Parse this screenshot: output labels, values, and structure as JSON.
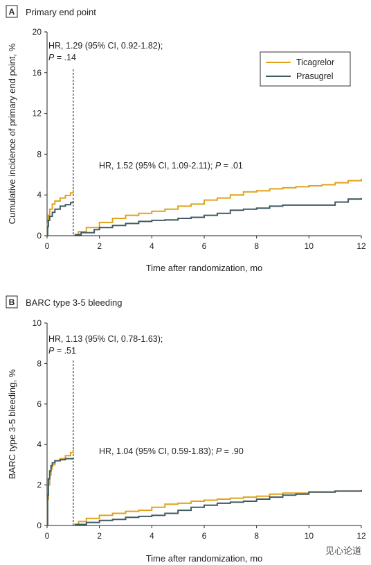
{
  "watermark": "见心论道",
  "colors": {
    "ticagrelor": "#E0A21B",
    "prasugrel": "#3F5A62",
    "axis": "#222222",
    "legend_border": "#333333"
  },
  "chart_data": [
    {
      "type": "line",
      "panel_letter": "A",
      "title": "Primary end point",
      "xlabel": "Time after randomization, mo",
      "ylabel": "Cumulative incidence of primary end point, %",
      "xlim": [
        0,
        12
      ],
      "ylim": [
        0,
        20
      ],
      "xticks": [
        0,
        2,
        4,
        6,
        8,
        10,
        12
      ],
      "yticks": [
        0,
        4,
        8,
        12,
        16,
        20
      ],
      "landmark_x": 1,
      "legend": {
        "placement": "top-right",
        "entries": [
          "Ticagrelor",
          "Prasugrel"
        ]
      },
      "annotations": [
        {
          "lines": [
            [
              {
                "t": "HR, 1.29 (95% CI, 0.92-1.82);",
                "i": false
              }
            ],
            [
              {
                "t": "P",
                "i": true
              },
              {
                "t": " = .14",
                "i": false
              }
            ]
          ],
          "pos": "top-left"
        },
        {
          "lines": [
            [
              {
                "t": "HR, 1.52 (95% CI, 1.09-2.11); ",
                "i": false
              },
              {
                "t": "P",
                "i": true
              },
              {
                "t": " = .01",
                "i": false
              }
            ]
          ],
          "pos": "mid"
        }
      ],
      "series": [
        {
          "name": "Ticagrelor",
          "segments": [
            [
              [
                0,
                0
              ],
              [
                0.02,
                1.2
              ],
              [
                0.05,
                2.0
              ],
              [
                0.1,
                2.6
              ],
              [
                0.2,
                3.1
              ],
              [
                0.3,
                3.4
              ],
              [
                0.5,
                3.7
              ],
              [
                0.7,
                3.95
              ],
              [
                0.9,
                4.2
              ],
              [
                1.0,
                4.5
              ]
            ],
            [
              [
                1.05,
                0.1
              ],
              [
                1.2,
                0.4
              ],
              [
                1.5,
                0.8
              ],
              [
                2.0,
                1.3
              ],
              [
                2.5,
                1.7
              ],
              [
                3.0,
                2.0
              ],
              [
                3.5,
                2.2
              ],
              [
                4.0,
                2.4
              ],
              [
                4.5,
                2.6
              ],
              [
                5.0,
                2.9
              ],
              [
                5.5,
                3.1
              ],
              [
                6.0,
                3.5
              ],
              [
                6.5,
                3.7
              ],
              [
                7.0,
                4.0
              ],
              [
                7.5,
                4.3
              ],
              [
                8.0,
                4.4
              ],
              [
                8.5,
                4.6
              ],
              [
                9.0,
                4.7
              ],
              [
                9.5,
                4.8
              ],
              [
                10.0,
                4.9
              ],
              [
                10.5,
                5.0
              ],
              [
                11.0,
                5.2
              ],
              [
                11.5,
                5.4
              ],
              [
                12.0,
                5.6
              ]
            ]
          ]
        },
        {
          "name": "Prasugrel",
          "segments": [
            [
              [
                0,
                0
              ],
              [
                0.02,
                0.9
              ],
              [
                0.05,
                1.5
              ],
              [
                0.1,
                1.9
              ],
              [
                0.2,
                2.3
              ],
              [
                0.3,
                2.6
              ],
              [
                0.5,
                2.9
              ],
              [
                0.7,
                3.05
              ],
              [
                0.9,
                3.25
              ],
              [
                1.0,
                3.4
              ]
            ],
            [
              [
                1.05,
                0.1
              ],
              [
                1.3,
                0.3
              ],
              [
                1.8,
                0.6
              ],
              [
                2.0,
                0.8
              ],
              [
                2.5,
                1.0
              ],
              [
                3.0,
                1.2
              ],
              [
                3.5,
                1.4
              ],
              [
                4.0,
                1.5
              ],
              [
                4.5,
                1.55
              ],
              [
                5.0,
                1.7
              ],
              [
                5.5,
                1.8
              ],
              [
                6.0,
                2.0
              ],
              [
                6.5,
                2.2
              ],
              [
                7.0,
                2.5
              ],
              [
                7.5,
                2.6
              ],
              [
                8.0,
                2.7
              ],
              [
                8.5,
                2.9
              ],
              [
                9.0,
                3.0
              ],
              [
                9.5,
                3.0
              ],
              [
                10.0,
                3.0
              ],
              [
                10.5,
                3.0
              ],
              [
                11.0,
                3.3
              ],
              [
                11.5,
                3.6
              ],
              [
                12.0,
                3.7
              ]
            ]
          ]
        }
      ]
    },
    {
      "type": "line",
      "panel_letter": "B",
      "title": "BARC type 3-5 bleeding",
      "xlabel": "Time after randomization, mo",
      "ylabel": "BARC type 3-5 bleeding, %",
      "xlim": [
        0,
        12
      ],
      "ylim": [
        0,
        10
      ],
      "xticks": [
        0,
        2,
        4,
        6,
        8,
        10,
        12
      ],
      "yticks": [
        0,
        2,
        4,
        6,
        8,
        10
      ],
      "landmark_x": 1,
      "legend": null,
      "annotations": [
        {
          "lines": [
            [
              {
                "t": "HR, 1.13 (95% CI, 0.78-1.63);",
                "i": false
              }
            ],
            [
              {
                "t": "P",
                "i": true
              },
              {
                "t": " = .51",
                "i": false
              }
            ]
          ],
          "pos": "top-left"
        },
        {
          "lines": [
            [
              {
                "t": "HR, 1.04 (95% CI, 0.59-1.83); ",
                "i": false
              },
              {
                "t": "P",
                "i": true
              },
              {
                "t": " = .90",
                "i": false
              }
            ]
          ],
          "pos": "mid"
        }
      ],
      "series": [
        {
          "name": "Ticagrelor",
          "segments": [
            [
              [
                0,
                0
              ],
              [
                0.02,
                1.3
              ],
              [
                0.05,
                2.0
              ],
              [
                0.1,
                2.5
              ],
              [
                0.15,
                2.8
              ],
              [
                0.2,
                3.0
              ],
              [
                0.3,
                3.2
              ],
              [
                0.5,
                3.3
              ],
              [
                0.7,
                3.45
              ],
              [
                0.9,
                3.6
              ],
              [
                1.0,
                3.75
              ]
            ],
            [
              [
                1.05,
                0.05
              ],
              [
                1.2,
                0.2
              ],
              [
                1.5,
                0.35
              ],
              [
                2.0,
                0.5
              ],
              [
                2.5,
                0.6
              ],
              [
                3.0,
                0.7
              ],
              [
                3.5,
                0.75
              ],
              [
                4.0,
                0.9
              ],
              [
                4.5,
                1.05
              ],
              [
                5.0,
                1.1
              ],
              [
                5.5,
                1.2
              ],
              [
                6.0,
                1.25
              ],
              [
                6.5,
                1.3
              ],
              [
                7.0,
                1.35
              ],
              [
                7.5,
                1.4
              ],
              [
                8.0,
                1.45
              ],
              [
                8.5,
                1.55
              ],
              [
                9.0,
                1.6
              ],
              [
                9.5,
                1.6
              ],
              [
                10.0,
                1.65
              ],
              [
                11.0,
                1.7
              ],
              [
                12.0,
                1.7
              ]
            ]
          ]
        },
        {
          "name": "Prasugrel",
          "segments": [
            [
              [
                0,
                0
              ],
              [
                0.02,
                1.5
              ],
              [
                0.05,
                2.3
              ],
              [
                0.1,
                2.7
              ],
              [
                0.15,
                2.95
              ],
              [
                0.2,
                3.1
              ],
              [
                0.3,
                3.2
              ],
              [
                0.5,
                3.25
              ],
              [
                0.7,
                3.3
              ],
              [
                1.0,
                3.35
              ]
            ],
            [
              [
                1.05,
                0.05
              ],
              [
                1.5,
                0.15
              ],
              [
                2.0,
                0.25
              ],
              [
                2.5,
                0.3
              ],
              [
                3.0,
                0.4
              ],
              [
                3.5,
                0.45
              ],
              [
                4.0,
                0.5
              ],
              [
                4.5,
                0.6
              ],
              [
                5.0,
                0.75
              ],
              [
                5.5,
                0.9
              ],
              [
                6.0,
                1.0
              ],
              [
                6.5,
                1.1
              ],
              [
                7.0,
                1.15
              ],
              [
                7.5,
                1.2
              ],
              [
                8.0,
                1.3
              ],
              [
                8.5,
                1.4
              ],
              [
                9.0,
                1.5
              ],
              [
                9.5,
                1.55
              ],
              [
                10.0,
                1.65
              ],
              [
                11.0,
                1.7
              ],
              [
                12.0,
                1.75
              ]
            ]
          ]
        }
      ]
    }
  ]
}
